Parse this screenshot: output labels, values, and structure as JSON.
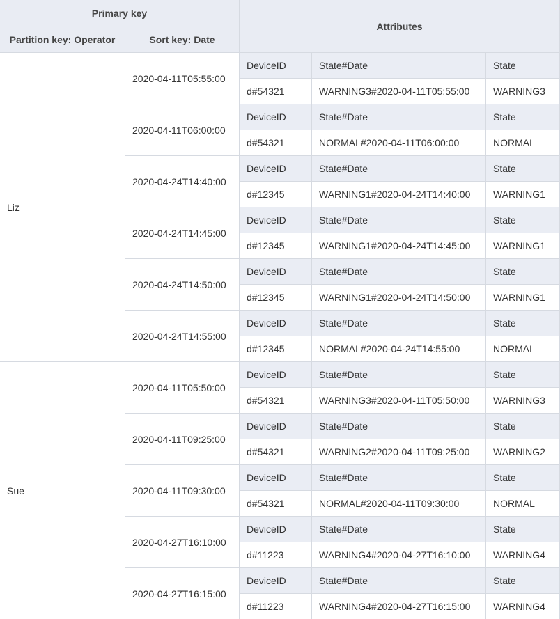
{
  "header": {
    "primary_key": "Primary key",
    "partition_key": "Partition key: Operator",
    "sort_key": "Sort key: Date",
    "attributes": "Attributes"
  },
  "partitions": [
    {
      "operator": "Liz",
      "items": [
        {
          "date": "2020-04-11T05:55:00",
          "attribute_names": [
            "DeviceID",
            "State#Date",
            "State"
          ],
          "attribute_values": [
            "d#54321",
            "WARNING3#2020-04-11T05:55:00",
            "WARNING3"
          ]
        },
        {
          "date": "2020-04-11T06:00:00",
          "attribute_names": [
            "DeviceID",
            "State#Date",
            "State"
          ],
          "attribute_values": [
            "d#54321",
            "NORMAL#2020-04-11T06:00:00",
            "NORMAL"
          ]
        },
        {
          "date": "2020-04-24T14:40:00",
          "attribute_names": [
            "DeviceID",
            "State#Date",
            "State"
          ],
          "attribute_values": [
            "d#12345",
            "WARNING1#2020-04-24T14:40:00",
            "WARNING1"
          ]
        },
        {
          "date": "2020-04-24T14:45:00",
          "attribute_names": [
            "DeviceID",
            "State#Date",
            "State"
          ],
          "attribute_values": [
            "d#12345",
            "WARNING1#2020-04-24T14:45:00",
            "WARNING1"
          ]
        },
        {
          "date": "2020-04-24T14:50:00",
          "attribute_names": [
            "DeviceID",
            "State#Date",
            "State"
          ],
          "attribute_values": [
            "d#12345",
            "WARNING1#2020-04-24T14:50:00",
            "WARNING1"
          ]
        },
        {
          "date": "2020-04-24T14:55:00",
          "attribute_names": [
            "DeviceID",
            "State#Date",
            "State"
          ],
          "attribute_values": [
            "d#12345",
            "NORMAL#2020-04-24T14:55:00",
            "NORMAL"
          ]
        }
      ]
    },
    {
      "operator": "Sue",
      "items": [
        {
          "date": "2020-04-11T05:50:00",
          "attribute_names": [
            "DeviceID",
            "State#Date",
            "State"
          ],
          "attribute_values": [
            "d#54321",
            "WARNING3#2020-04-11T05:50:00",
            "WARNING3"
          ]
        },
        {
          "date": "2020-04-11T09:25:00",
          "attribute_names": [
            "DeviceID",
            "State#Date",
            "State"
          ],
          "attribute_values": [
            "d#54321",
            "WARNING2#2020-04-11T09:25:00",
            "WARNING2"
          ]
        },
        {
          "date": "2020-04-11T09:30:00",
          "attribute_names": [
            "DeviceID",
            "State#Date",
            "State"
          ],
          "attribute_values": [
            "d#54321",
            "NORMAL#2020-04-11T09:30:00",
            "NORMAL"
          ]
        },
        {
          "date": "2020-04-27T16:10:00",
          "attribute_names": [
            "DeviceID",
            "State#Date",
            "State"
          ],
          "attribute_values": [
            "d#11223",
            "WARNING4#2020-04-27T16:10:00",
            "WARNING4"
          ]
        },
        {
          "date": "2020-04-27T16:15:00",
          "attribute_names": [
            "DeviceID",
            "State#Date",
            "State"
          ],
          "attribute_values": [
            "d#11223",
            "WARNING4#2020-04-27T16:15:00",
            "WARNING4"
          ]
        }
      ]
    }
  ]
}
